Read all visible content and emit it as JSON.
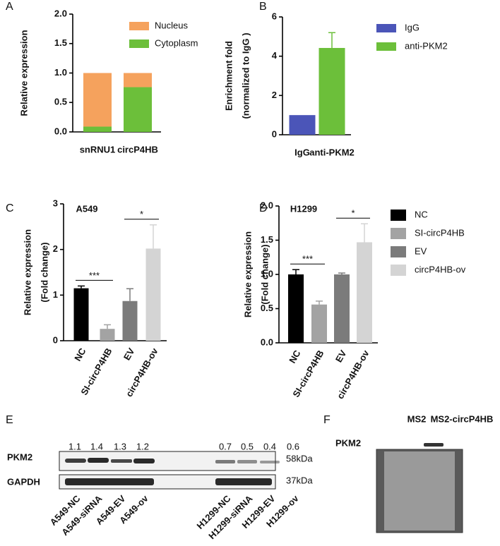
{
  "chart_data": [
    {
      "panel": "A",
      "type": "stacked_bar",
      "ylabel": [
        "Relative expression"
      ],
      "categories": [
        "snRNU1",
        "circP4HB"
      ],
      "series": [
        {
          "name": "Nucleus",
          "color": "#f5a25d",
          "values": [
            0.91,
            0.24
          ]
        },
        {
          "name": "Cytoplasm",
          "color": "#6cbf3a",
          "values": [
            0.09,
            0.76
          ]
        }
      ],
      "ylim": [
        0,
        2
      ],
      "yticks": [
        {
          "value": 0,
          "label": "0.0"
        },
        0.5,
        {
          "value": 1,
          "label": "1.0"
        },
        1.5,
        {
          "value": 2,
          "label": "2.0"
        }
      ],
      "legend": true
    },
    {
      "panel": "B",
      "type": "bar",
      "ylabel": [
        "Enrichment fold",
        "(normalized to IgG )"
      ],
      "categories": [
        "IgG",
        "anti-PKM2"
      ],
      "values": [
        1,
        4.42
      ],
      "errors": [
        null,
        0.78
      ],
      "colors": [
        "#4b55b8",
        "#6cbf3a"
      ],
      "ylim": [
        0,
        6
      ],
      "yticks": [
        0,
        2,
        4,
        6
      ],
      "legend": true
    },
    {
      "panel": "C",
      "type": "bar",
      "title": "A549",
      "ylabel": [
        "Relative expression",
        "(Fold change)"
      ],
      "categories": [
        "NC",
        "SI-circP4HB",
        "EV",
        "circP4HB-ov"
      ],
      "values": [
        1.15,
        0.26,
        0.87,
        2.02
      ],
      "errors": [
        0.05,
        0.09,
        0.27,
        0.52
      ],
      "colors": [
        "#000000",
        "#a3a3a3",
        "#7b7b7b",
        "#d4d4d4"
      ],
      "ylim": [
        0,
        3
      ],
      "yticks": [
        0,
        1,
        2,
        3
      ],
      "annotations": [
        {
          "text": "***",
          "between": [
            "NC",
            "SI-circP4HB"
          ]
        },
        {
          "text": "*",
          "between": [
            "EV",
            "circP4HB-ov"
          ]
        }
      ],
      "legend": false
    },
    {
      "panel": "D",
      "type": "bar",
      "title": "H1299",
      "ylabel": [
        "Relative expression",
        "(Fold change)"
      ],
      "categories": [
        "NC",
        "SI-circP4HB",
        "EV",
        "circP4HB-ov"
      ],
      "values": [
        1.0,
        0.56,
        1.0,
        1.47
      ],
      "errors": [
        0.07,
        0.05,
        0.02,
        0.27
      ],
      "colors": [
        "#000000",
        "#a3a3a3",
        "#7b7b7b",
        "#d4d4d4"
      ],
      "ylim": [
        0,
        2
      ],
      "yticks": [
        {
          "value": 0,
          "label": "0.0"
        },
        0.5,
        {
          "value": 1,
          "label": "1.0"
        },
        1.5,
        {
          "value": 2,
          "label": "2.0"
        }
      ],
      "annotations": [
        {
          "text": "***",
          "between": [
            "NC",
            "SI-circP4HB"
          ]
        },
        {
          "text": "*",
          "between": [
            "EV",
            "circP4HB-ov"
          ]
        }
      ],
      "legend": true
    }
  ],
  "blot_e": {
    "panel": "E",
    "rows": [
      {
        "label": "PKM2",
        "size": "58kDa"
      },
      {
        "label": "GAPDH",
        "size": "37kDa"
      }
    ],
    "quantification": [
      1.1,
      1.4,
      1.3,
      1.2,
      0.7,
      0.5,
      0.4,
      0.6
    ],
    "lanes": [
      "A549-NC",
      "A549-siRNA",
      "A549-EV",
      "A549-ov",
      "H1299-NC",
      "H1299-siRNA",
      "H1299-EV",
      "H1299-ov"
    ]
  },
  "blot_f": {
    "panel": "F",
    "lanes": [
      "MS2",
      "MS2-circP4HB"
    ],
    "row": "PKM2"
  }
}
